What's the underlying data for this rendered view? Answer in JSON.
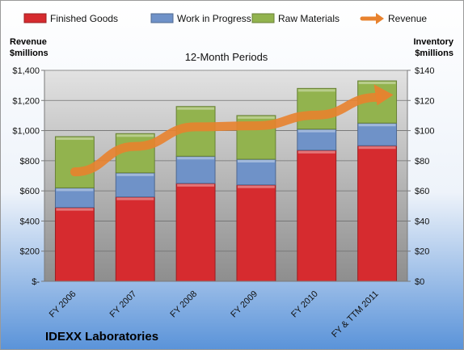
{
  "chart_data": {
    "type": "bar",
    "title": "12-Month Periods",
    "company": "IDEXX Laboratories",
    "categories": [
      "FY 2006",
      "FY 2007",
      "FY 2008",
      "FY 2009",
      "FY 2010",
      "FY & TTM 2011"
    ],
    "stacked": true,
    "series": [
      {
        "name": "Finished Goods",
        "values": [
          49,
          56,
          65,
          64,
          87,
          90
        ],
        "color": "#d62b2f"
      },
      {
        "name": "Work in Progress",
        "values": [
          13,
          16,
          18,
          17,
          14,
          15
        ],
        "color": "#6f92c8"
      },
      {
        "name": "Raw Materials",
        "values": [
          34,
          26,
          33,
          29,
          27,
          28
        ],
        "color": "#92b34e"
      }
    ],
    "line_series": {
      "name": "Revenue",
      "values": [
        726,
        895,
        1025,
        1032,
        1103,
        1221
      ],
      "color": "#e8822e",
      "axis": "left"
    },
    "y_left": {
      "label_line1": "Revenue",
      "label_line2": "$millions",
      "range": [
        0,
        1400
      ],
      "ticks": [
        "$-",
        "$200",
        "$400",
        "$600",
        "$800",
        "$1,000",
        "$1,200",
        "$1,400"
      ]
    },
    "y_right": {
      "label_line1": "Inventory",
      "label_line2": "$millions",
      "range": [
        0,
        140
      ],
      "ticks": [
        "$0",
        "$20",
        "$40",
        "$60",
        "$80",
        "$100",
        "$120",
        "$140"
      ]
    },
    "legend_position": "top",
    "grid": true
  }
}
